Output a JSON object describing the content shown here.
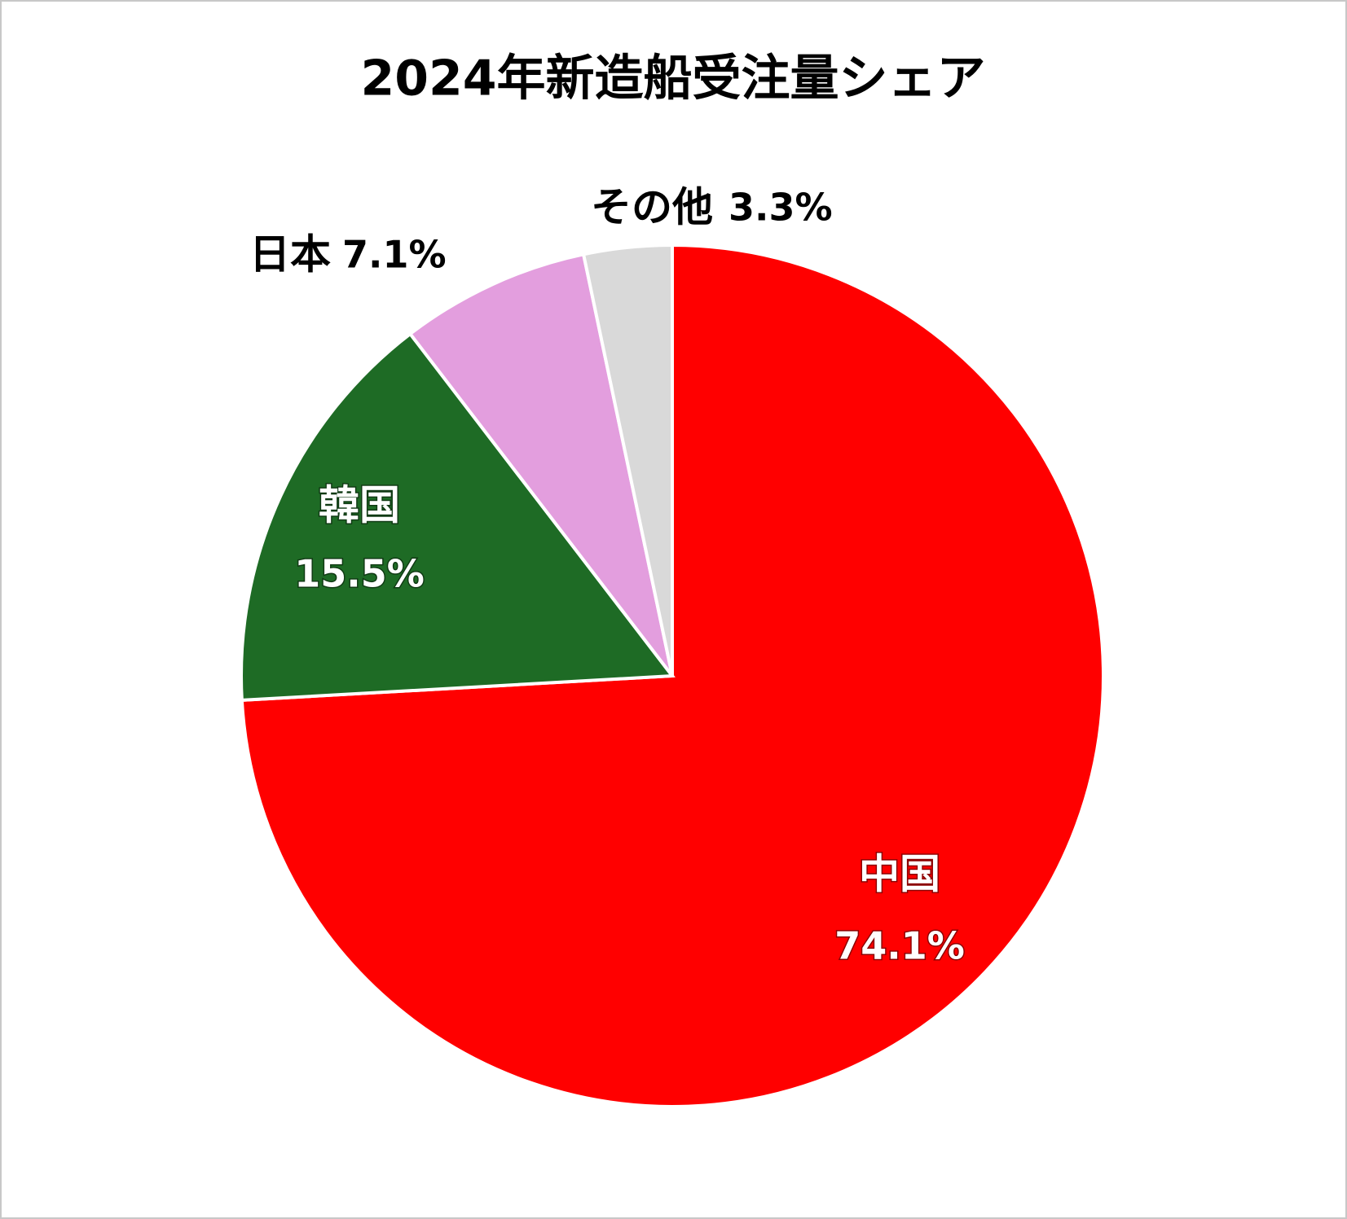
{
  "chart_data": {
    "type": "pie",
    "title": "2024年新造船受注量シェア",
    "categories": [
      "中国",
      "韓国",
      "日本",
      "その他"
    ],
    "values": [
      74.1,
      15.5,
      7.1,
      3.3
    ],
    "value_labels": [
      "74.1%",
      "15.5%",
      "7.1%",
      "3.3%"
    ],
    "colors": [
      "#ff0000",
      "#1e6b25",
      "#e39ede",
      "#d9d9d9"
    ]
  }
}
